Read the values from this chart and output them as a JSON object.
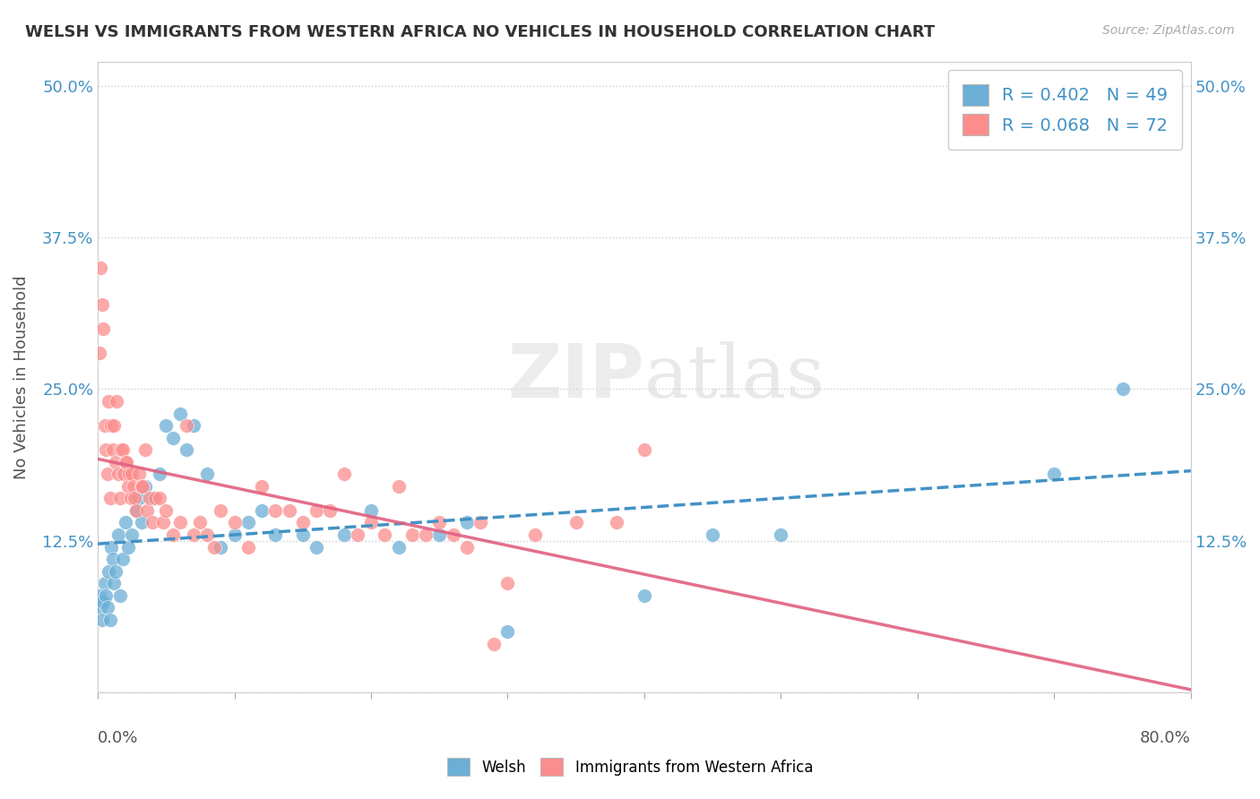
{
  "title": "WELSH VS IMMIGRANTS FROM WESTERN AFRICA NO VEHICLES IN HOUSEHOLD CORRELATION CHART",
  "source": "Source: ZipAtlas.com",
  "ylabel": "No Vehicles in Household",
  "yticks": [
    "",
    "12.5%",
    "25.0%",
    "37.5%",
    "50.0%"
  ],
  "ytick_vals": [
    0,
    0.125,
    0.25,
    0.375,
    0.5
  ],
  "xlim": [
    0.0,
    0.8
  ],
  "ylim": [
    0.0,
    0.52
  ],
  "watermark_zip": "ZIP",
  "watermark_atlas": "atlas",
  "welsh_color": "#6baed6",
  "immigrant_color": "#fc8d8d",
  "welsh_line_color": "#4292c6",
  "immigrant_line_color": "#e06080",
  "welsh_r": 0.402,
  "welsh_n": 49,
  "immigrant_r": 0.068,
  "immigrant_n": 72,
  "welsh_points": [
    [
      0.001,
      0.08
    ],
    [
      0.002,
      0.07
    ],
    [
      0.003,
      0.06
    ],
    [
      0.004,
      0.075
    ],
    [
      0.005,
      0.09
    ],
    [
      0.006,
      0.08
    ],
    [
      0.007,
      0.07
    ],
    [
      0.008,
      0.1
    ],
    [
      0.009,
      0.06
    ],
    [
      0.01,
      0.12
    ],
    [
      0.011,
      0.11
    ],
    [
      0.012,
      0.09
    ],
    [
      0.013,
      0.1
    ],
    [
      0.015,
      0.13
    ],
    [
      0.016,
      0.08
    ],
    [
      0.018,
      0.11
    ],
    [
      0.02,
      0.14
    ],
    [
      0.022,
      0.12
    ],
    [
      0.025,
      0.13
    ],
    [
      0.028,
      0.15
    ],
    [
      0.03,
      0.16
    ],
    [
      0.032,
      0.14
    ],
    [
      0.035,
      0.17
    ],
    [
      0.04,
      0.16
    ],
    [
      0.045,
      0.18
    ],
    [
      0.05,
      0.22
    ],
    [
      0.055,
      0.21
    ],
    [
      0.06,
      0.23
    ],
    [
      0.065,
      0.2
    ],
    [
      0.07,
      0.22
    ],
    [
      0.08,
      0.18
    ],
    [
      0.09,
      0.12
    ],
    [
      0.1,
      0.13
    ],
    [
      0.11,
      0.14
    ],
    [
      0.12,
      0.15
    ],
    [
      0.13,
      0.13
    ],
    [
      0.15,
      0.13
    ],
    [
      0.16,
      0.12
    ],
    [
      0.18,
      0.13
    ],
    [
      0.2,
      0.15
    ],
    [
      0.22,
      0.12
    ],
    [
      0.25,
      0.13
    ],
    [
      0.27,
      0.14
    ],
    [
      0.3,
      0.05
    ],
    [
      0.4,
      0.08
    ],
    [
      0.45,
      0.13
    ],
    [
      0.5,
      0.13
    ],
    [
      0.7,
      0.18
    ],
    [
      0.75,
      0.25
    ]
  ],
  "immigrant_points": [
    [
      0.001,
      0.28
    ],
    [
      0.002,
      0.35
    ],
    [
      0.003,
      0.32
    ],
    [
      0.004,
      0.3
    ],
    [
      0.005,
      0.22
    ],
    [
      0.006,
      0.2
    ],
    [
      0.007,
      0.18
    ],
    [
      0.008,
      0.24
    ],
    [
      0.009,
      0.16
    ],
    [
      0.01,
      0.22
    ],
    [
      0.011,
      0.2
    ],
    [
      0.012,
      0.22
    ],
    [
      0.013,
      0.19
    ],
    [
      0.014,
      0.24
    ],
    [
      0.015,
      0.18
    ],
    [
      0.016,
      0.16
    ],
    [
      0.017,
      0.2
    ],
    [
      0.018,
      0.2
    ],
    [
      0.019,
      0.18
    ],
    [
      0.02,
      0.19
    ],
    [
      0.021,
      0.19
    ],
    [
      0.022,
      0.17
    ],
    [
      0.023,
      0.18
    ],
    [
      0.024,
      0.16
    ],
    [
      0.025,
      0.18
    ],
    [
      0.026,
      0.17
    ],
    [
      0.027,
      0.16
    ],
    [
      0.028,
      0.15
    ],
    [
      0.03,
      0.18
    ],
    [
      0.032,
      0.17
    ],
    [
      0.033,
      0.17
    ],
    [
      0.035,
      0.2
    ],
    [
      0.036,
      0.15
    ],
    [
      0.038,
      0.16
    ],
    [
      0.04,
      0.14
    ],
    [
      0.042,
      0.16
    ],
    [
      0.045,
      0.16
    ],
    [
      0.048,
      0.14
    ],
    [
      0.05,
      0.15
    ],
    [
      0.055,
      0.13
    ],
    [
      0.06,
      0.14
    ],
    [
      0.065,
      0.22
    ],
    [
      0.07,
      0.13
    ],
    [
      0.075,
      0.14
    ],
    [
      0.08,
      0.13
    ],
    [
      0.085,
      0.12
    ],
    [
      0.09,
      0.15
    ],
    [
      0.1,
      0.14
    ],
    [
      0.11,
      0.12
    ],
    [
      0.12,
      0.17
    ],
    [
      0.13,
      0.15
    ],
    [
      0.14,
      0.15
    ],
    [
      0.15,
      0.14
    ],
    [
      0.16,
      0.15
    ],
    [
      0.17,
      0.15
    ],
    [
      0.18,
      0.18
    ],
    [
      0.19,
      0.13
    ],
    [
      0.2,
      0.14
    ],
    [
      0.21,
      0.13
    ],
    [
      0.22,
      0.17
    ],
    [
      0.23,
      0.13
    ],
    [
      0.24,
      0.13
    ],
    [
      0.25,
      0.14
    ],
    [
      0.26,
      0.13
    ],
    [
      0.27,
      0.12
    ],
    [
      0.28,
      0.14
    ],
    [
      0.29,
      0.04
    ],
    [
      0.3,
      0.09
    ],
    [
      0.32,
      0.13
    ],
    [
      0.35,
      0.14
    ],
    [
      0.38,
      0.14
    ],
    [
      0.4,
      0.2
    ]
  ]
}
